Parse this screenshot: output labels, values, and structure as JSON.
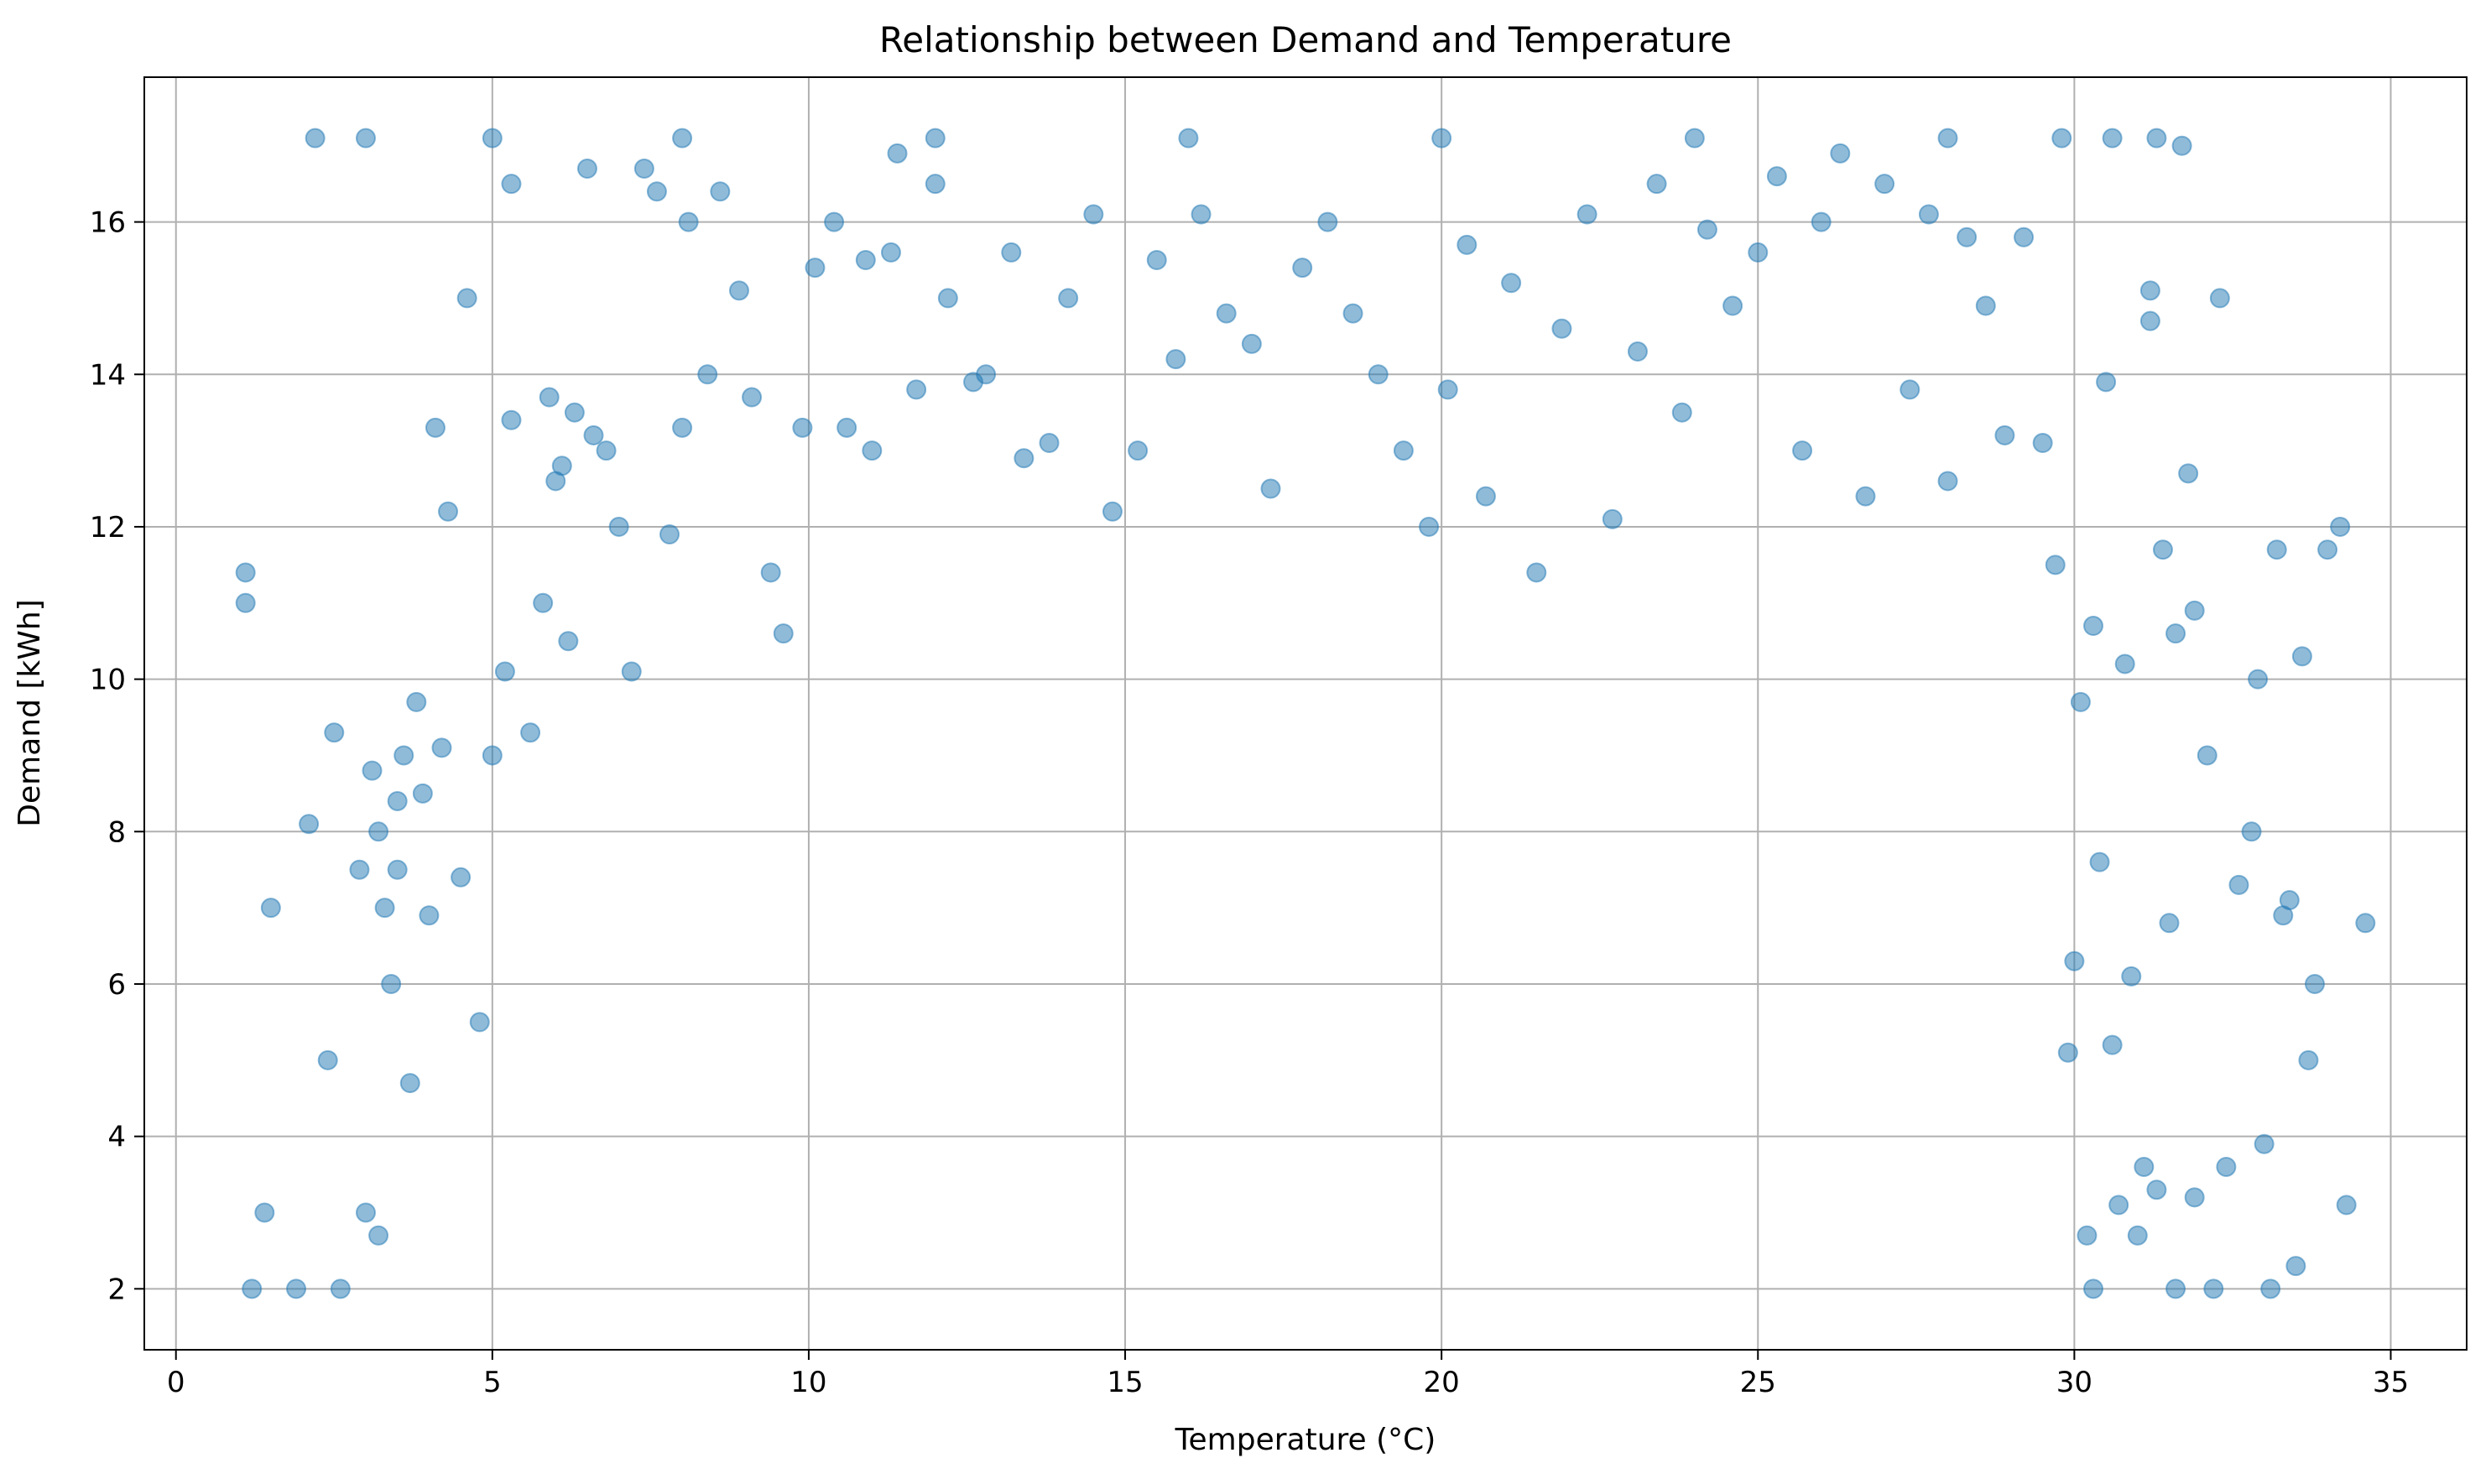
{
  "chart_data": {
    "type": "scatter",
    "title": "Relationship between Demand and Temperature",
    "xlabel": "Temperature (°C)",
    "ylabel": "Demand [kWh]",
    "xlim": [
      -0.5,
      36.2
    ],
    "ylim": [
      1.2,
      17.9
    ],
    "xticks": [
      0,
      5,
      10,
      15,
      20,
      25,
      30,
      35
    ],
    "yticks": [
      2,
      4,
      6,
      8,
      10,
      12,
      14,
      16
    ],
    "grid": true,
    "legend": "none",
    "marker": {
      "shape": "circle",
      "alpha": 0.5
    },
    "series": [
      {
        "color": "#1f77b4",
        "points": [
          [
            1.1,
            11.0
          ],
          [
            1.1,
            11.4
          ],
          [
            1.2,
            2.0
          ],
          [
            1.4,
            3.0
          ],
          [
            1.5,
            7.0
          ],
          [
            1.9,
            2.0
          ],
          [
            2.1,
            8.1
          ],
          [
            2.2,
            17.1
          ],
          [
            2.4,
            5.0
          ],
          [
            2.5,
            9.3
          ],
          [
            2.6,
            2.0
          ],
          [
            2.9,
            7.5
          ],
          [
            3.0,
            3.0
          ],
          [
            3.1,
            8.8
          ],
          [
            3.2,
            2.7
          ],
          [
            3.2,
            8.0
          ],
          [
            3.3,
            7.0
          ],
          [
            3.4,
            6.0
          ],
          [
            3.5,
            8.4
          ],
          [
            3.5,
            7.5
          ],
          [
            3.6,
            9.0
          ],
          [
            3.7,
            4.7
          ],
          [
            3.8,
            9.7
          ],
          [
            3.9,
            8.5
          ],
          [
            4.0,
            6.9
          ],
          [
            4.1,
            13.3
          ],
          [
            4.2,
            9.1
          ],
          [
            4.3,
            12.2
          ],
          [
            4.5,
            7.4
          ],
          [
            4.6,
            15.0
          ],
          [
            4.8,
            5.5
          ],
          [
            5.0,
            9.0
          ],
          [
            5.2,
            10.1
          ],
          [
            5.3,
            16.5
          ],
          [
            5.3,
            13.4
          ],
          [
            5.6,
            9.3
          ],
          [
            5.8,
            11.0
          ],
          [
            5.9,
            13.7
          ],
          [
            6.0,
            12.6
          ],
          [
            6.1,
            12.8
          ],
          [
            6.2,
            10.5
          ],
          [
            6.3,
            13.5
          ],
          [
            6.5,
            16.7
          ],
          [
            6.6,
            13.2
          ],
          [
            6.8,
            13.0
          ],
          [
            7.0,
            12.0
          ],
          [
            7.2,
            10.1
          ],
          [
            7.4,
            16.7
          ],
          [
            7.6,
            16.4
          ],
          [
            7.8,
            11.9
          ],
          [
            8.0,
            13.3
          ],
          [
            8.1,
            16.0
          ],
          [
            8.4,
            14.0
          ],
          [
            8.6,
            16.4
          ],
          [
            8.9,
            15.1
          ],
          [
            9.1,
            13.7
          ],
          [
            9.4,
            11.4
          ],
          [
            9.6,
            10.6
          ],
          [
            9.9,
            13.3
          ],
          [
            10.1,
            15.4
          ],
          [
            10.4,
            16.0
          ],
          [
            10.6,
            13.3
          ],
          [
            10.9,
            15.5
          ],
          [
            11.0,
            13.0
          ],
          [
            11.3,
            15.6
          ],
          [
            11.4,
            16.9
          ],
          [
            11.7,
            13.8
          ],
          [
            12.0,
            16.5
          ],
          [
            12.2,
            15.0
          ],
          [
            12.6,
            13.9
          ],
          [
            12.8,
            14.0
          ],
          [
            13.2,
            15.6
          ],
          [
            13.4,
            12.9
          ],
          [
            13.8,
            13.1
          ],
          [
            14.1,
            15.0
          ],
          [
            14.5,
            16.1
          ],
          [
            14.8,
            12.2
          ],
          [
            15.2,
            13.0
          ],
          [
            15.5,
            15.5
          ],
          [
            15.8,
            14.2
          ],
          [
            16.2,
            16.1
          ],
          [
            16.6,
            14.8
          ],
          [
            17.0,
            14.4
          ],
          [
            17.3,
            12.5
          ],
          [
            17.8,
            15.4
          ],
          [
            18.2,
            16.0
          ],
          [
            18.6,
            14.8
          ],
          [
            19.0,
            14.0
          ],
          [
            19.4,
            13.0
          ],
          [
            19.8,
            12.0
          ],
          [
            20.1,
            13.8
          ],
          [
            20.4,
            15.7
          ],
          [
            20.7,
            12.4
          ],
          [
            21.1,
            15.2
          ],
          [
            21.5,
            11.4
          ],
          [
            21.9,
            14.6
          ],
          [
            22.3,
            16.1
          ],
          [
            22.7,
            12.1
          ],
          [
            23.1,
            14.3
          ],
          [
            23.4,
            16.5
          ],
          [
            23.8,
            13.5
          ],
          [
            24.2,
            15.9
          ],
          [
            24.6,
            14.9
          ],
          [
            25.0,
            15.6
          ],
          [
            25.3,
            16.6
          ],
          [
            25.7,
            13.0
          ],
          [
            26.0,
            16.0
          ],
          [
            26.3,
            16.9
          ],
          [
            26.7,
            12.4
          ],
          [
            27.0,
            16.5
          ],
          [
            27.4,
            13.8
          ],
          [
            27.7,
            16.1
          ],
          [
            28.0,
            12.6
          ],
          [
            28.3,
            15.8
          ],
          [
            28.6,
            14.9
          ],
          [
            28.9,
            13.2
          ],
          [
            29.2,
            15.8
          ],
          [
            29.5,
            13.1
          ],
          [
            29.7,
            11.5
          ],
          [
            29.9,
            5.1
          ],
          [
            30.0,
            6.3
          ],
          [
            30.1,
            9.7
          ],
          [
            30.2,
            2.7
          ],
          [
            30.3,
            2.0
          ],
          [
            30.3,
            10.7
          ],
          [
            30.4,
            7.6
          ],
          [
            30.5,
            13.9
          ],
          [
            30.6,
            5.2
          ],
          [
            30.7,
            3.1
          ],
          [
            30.8,
            10.2
          ],
          [
            30.9,
            6.1
          ],
          [
            31.0,
            2.7
          ],
          [
            31.1,
            3.6
          ],
          [
            31.2,
            15.1
          ],
          [
            31.2,
            14.7
          ],
          [
            31.3,
            3.3
          ],
          [
            31.4,
            11.7
          ],
          [
            31.5,
            6.8
          ],
          [
            31.6,
            2.0
          ],
          [
            31.6,
            10.6
          ],
          [
            31.7,
            17.0
          ],
          [
            31.8,
            12.7
          ],
          [
            31.9,
            3.2
          ],
          [
            31.9,
            10.9
          ],
          [
            32.1,
            9.0
          ],
          [
            32.2,
            2.0
          ],
          [
            32.3,
            15.0
          ],
          [
            32.4,
            3.6
          ],
          [
            32.6,
            7.3
          ],
          [
            32.8,
            8.0
          ],
          [
            32.9,
            10.0
          ],
          [
            33.0,
            3.9
          ],
          [
            33.1,
            2.0
          ],
          [
            33.2,
            11.7
          ],
          [
            33.3,
            6.9
          ],
          [
            33.4,
            7.1
          ],
          [
            33.5,
            2.3
          ],
          [
            33.6,
            10.3
          ],
          [
            33.7,
            5.0
          ],
          [
            33.8,
            6.0
          ],
          [
            34.0,
            11.7
          ],
          [
            34.2,
            12.0
          ],
          [
            34.3,
            3.1
          ],
          [
            34.6,
            6.8
          ],
          [
            3.0,
            17.1
          ],
          [
            5.0,
            17.1
          ],
          [
            8.0,
            17.1
          ],
          [
            12.0,
            17.1
          ],
          [
            16.0,
            17.1
          ],
          [
            20.0,
            17.1
          ],
          [
            24.0,
            17.1
          ],
          [
            28.0,
            17.1
          ],
          [
            29.8,
            17.1
          ],
          [
            30.6,
            17.1
          ],
          [
            31.3,
            17.1
          ]
        ]
      }
    ]
  }
}
